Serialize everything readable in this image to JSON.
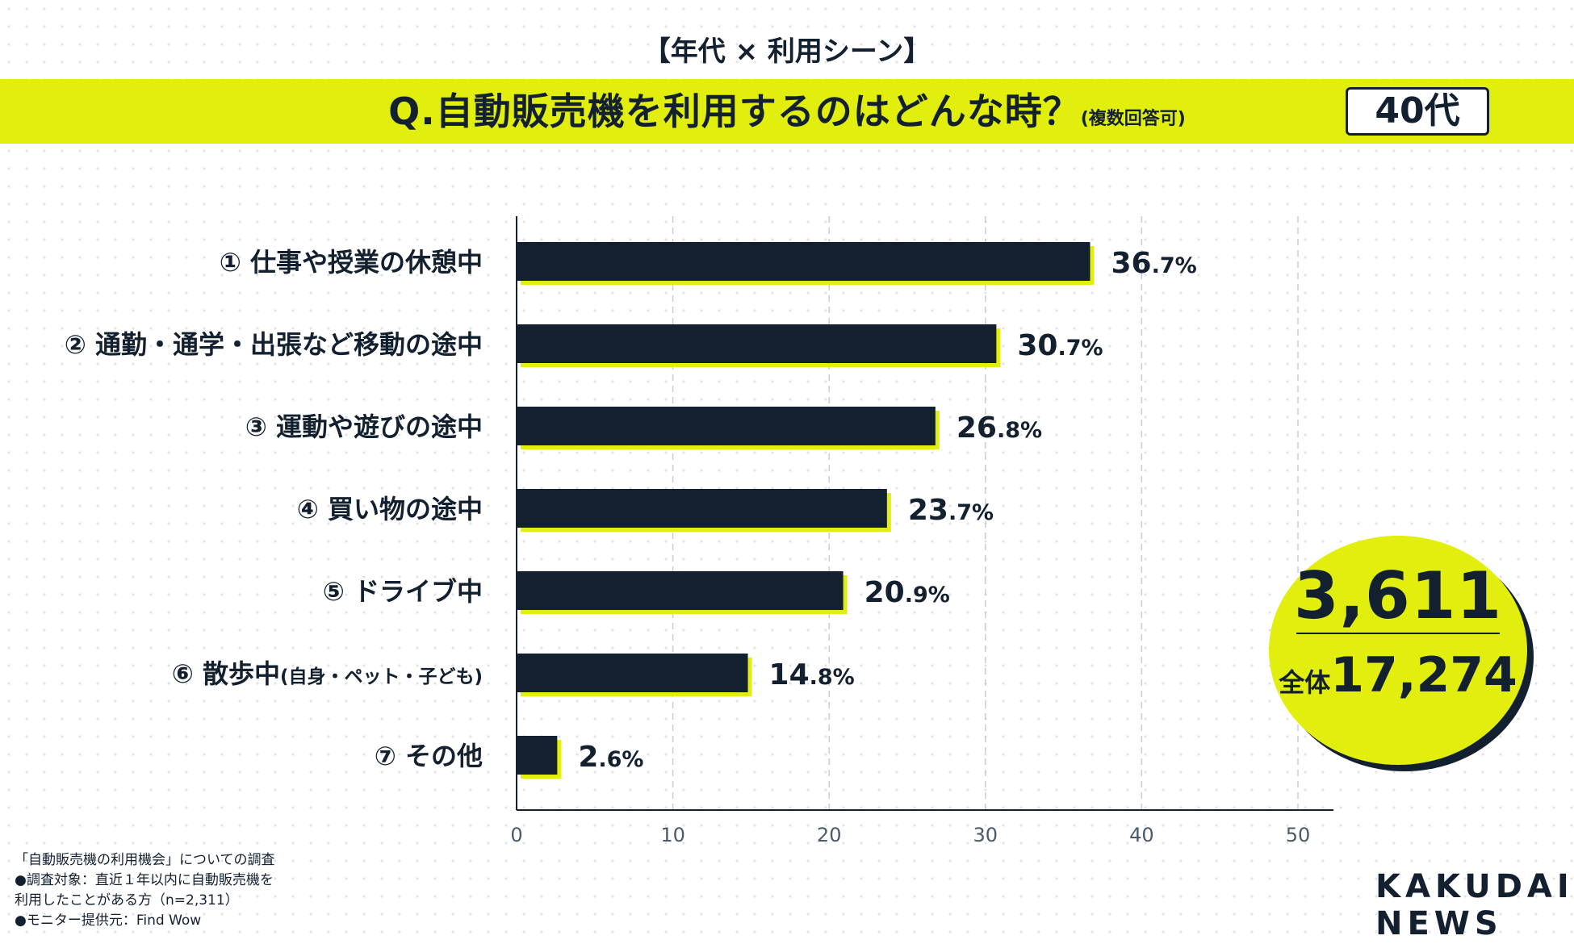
{
  "header": {
    "top_label": "【年代 × 利用シーン】",
    "question": "Q.自動販売機を利用するのはどんな時？",
    "question_note": "(複数回答可)",
    "age_badge": "40代"
  },
  "chart_data": {
    "type": "bar",
    "orientation": "horizontal",
    "categories": [
      "① 仕事や授業の休憩中",
      "② 通勤・通学・出張など移動の途中",
      "③ 運動や遊びの途中",
      "④ 買い物の途中",
      "⑤ ドライブ中",
      "⑥ 散歩中",
      "⑦ その他"
    ],
    "category_suffix": [
      "",
      "",
      "",
      "",
      "",
      "(自身・ペット・子ども)",
      ""
    ],
    "values": [
      36.7,
      30.7,
      26.8,
      23.7,
      20.9,
      14.8,
      2.6
    ],
    "value_labels": [
      "36.7%",
      "30.7%",
      "26.8%",
      "23.7%",
      "20.9%",
      "14.8%",
      "2.6%"
    ],
    "xlim": [
      0,
      50
    ],
    "xticks": [
      "0",
      "10",
      "20",
      "30",
      "40",
      "50"
    ],
    "grid": "vertical-dashed",
    "colors": {
      "bar": "#13202f",
      "bar_shadow": "#e2ee0d",
      "grid": "#c8cdd2",
      "tick": "#4a5a6a"
    }
  },
  "summary": {
    "value": "3,611",
    "total_label": "全体",
    "total_value": "17,274"
  },
  "footnote": {
    "line1": "「自動販売機の利用機会」についての調査",
    "line2": "●調査対象：直近１年以内に自動販売機を",
    "line3": "利用したことがある方（n=2,311）",
    "line4": "●モニター提供元：Find Wow"
  },
  "logo": {
    "line1": "KAKUDAI",
    "line2": "NEWS"
  },
  "colors": {
    "accent": "#e2ee0d",
    "dark": "#13202f"
  }
}
